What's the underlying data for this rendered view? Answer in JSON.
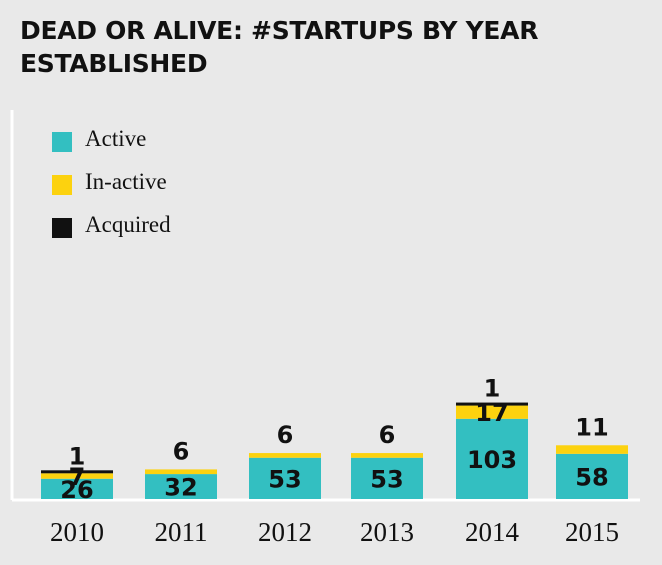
{
  "title": "DEAD OR ALIVE: #STARTUPS BY YEAR ESTABLISHED",
  "colors": {
    "background": "#e9e9e9",
    "Active": "#33bfc1",
    "In-active": "#fcd20f",
    "Acquired": "#111111"
  },
  "chart_data": {
    "type": "bar",
    "stacked": true,
    "title": "DEAD OR ALIVE: #STARTUPS BY YEAR ESTABLISHED",
    "categories": [
      "2010",
      "2011",
      "2012",
      "2013",
      "2014",
      "2015"
    ],
    "series": [
      {
        "name": "Active",
        "values": [
          26,
          32,
          53,
          53,
          103,
          58
        ]
      },
      {
        "name": "In-active",
        "values": [
          7,
          6,
          6,
          6,
          17,
          11
        ]
      },
      {
        "name": "Acquired",
        "values": [
          1,
          0,
          0,
          0,
          1,
          0
        ]
      }
    ],
    "legend_position": "top-left",
    "grid": false
  }
}
